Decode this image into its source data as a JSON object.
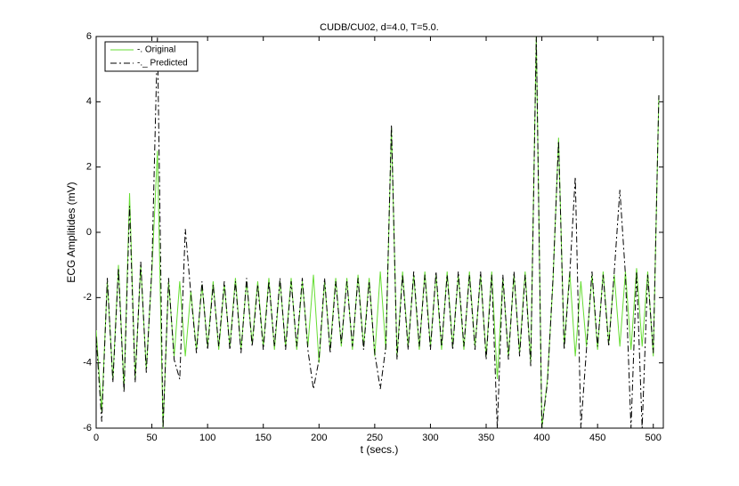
{
  "chart_data": {
    "type": "line",
    "title": "CUDB/CU02, d=4.0, T=5.0.",
    "x_label": "t (secs.)",
    "y_label": "ECG Amplitides (mV)",
    "x": [
      0,
      5,
      10,
      15,
      20,
      25,
      30,
      35,
      40,
      45,
      50,
      55,
      60,
      65,
      70,
      75,
      80,
      85,
      90,
      95,
      100,
      105,
      110,
      115,
      120,
      125,
      130,
      135,
      140,
      145,
      150,
      155,
      160,
      165,
      170,
      175,
      180,
      185,
      190,
      195,
      200,
      205,
      210,
      215,
      220,
      225,
      230,
      235,
      240,
      245,
      250,
      255,
      260,
      265,
      270,
      275,
      280,
      285,
      290,
      295,
      300,
      305,
      310,
      315,
      320,
      325,
      330,
      335,
      340,
      345,
      350,
      355,
      360,
      365,
      370,
      375,
      380,
      385,
      390,
      395,
      400,
      405,
      410,
      415,
      420,
      425,
      430,
      435,
      440,
      445,
      450,
      455,
      460,
      465,
      470,
      475,
      480,
      485,
      490,
      495,
      500,
      505
    ],
    "series": [
      {
        "name": "-. Original",
        "color": "#66dd33",
        "dash": "solid",
        "values": [
          -3,
          -5.5,
          -1.5,
          -4.5,
          -1,
          -4.8,
          1.2,
          -4.5,
          -1,
          -4.2,
          -1.2,
          2.5,
          -6,
          -1.5,
          -3.8,
          -1.5,
          -3.8,
          -1.8,
          -3.6,
          -1.6,
          -3.5,
          -1.5,
          -3.6,
          -1.6,
          -3.5,
          -1.4,
          -3.6,
          -1.5,
          -3.4,
          -1.5,
          -3.5,
          -1.4,
          -3.6,
          -1.5,
          -3.5,
          -1.4,
          -3.6,
          -1.5,
          -3.5,
          -1.3,
          -4,
          -1.5,
          -3.6,
          -1.4,
          -3.5,
          -1.4,
          -3.6,
          -1.3,
          -3.5,
          -1.4,
          -3.8,
          -1.2,
          -3.6,
          3.2,
          -3.8,
          -1.2,
          -3.5,
          -1.3,
          -3.6,
          -1.2,
          -3.5,
          -1.3,
          -3.6,
          -1.2,
          -3.5,
          -1.3,
          -3.6,
          -1.2,
          -3.5,
          -1.3,
          -3.8,
          -1.2,
          -4.5,
          -1.4,
          -3.8,
          -1.3,
          -3.7,
          -1.2,
          -4,
          6,
          -6,
          -4.5,
          -1.5,
          2.9,
          -3.5,
          -1.2,
          -3.8,
          -1.5,
          -3.5,
          -1.3,
          -3.6,
          -1.2,
          -3.4,
          -1.3,
          -3.5,
          -1.2,
          -3.6,
          -1.1,
          -3.5,
          -1.2,
          -3.8,
          4.2
        ]
      },
      {
        "name": "-._ Predicted",
        "color": "#000000",
        "dash": "dashdot",
        "values": [
          -3.2,
          -5.8,
          -1.4,
          -4.6,
          -1.1,
          -4.9,
          0.8,
          -4.6,
          -0.9,
          -4.3,
          -1.1,
          6,
          -6,
          -1.4,
          -3.9,
          -4.5,
          0.1,
          -1.9,
          -3.7,
          -1.5,
          -3.6,
          -1.6,
          -3.5,
          -1.5,
          -3.6,
          -1.5,
          -3.7,
          -1.4,
          -3.5,
          -1.6,
          -3.6,
          -1.5,
          -3.5,
          -1.4,
          -3.6,
          -1.5,
          -3.5,
          -1.4,
          -3.6,
          -4.8,
          -3.9,
          -1.4,
          -3.7,
          -1.5,
          -3.4,
          -1.5,
          -3.5,
          -1.4,
          -3.6,
          -1.5,
          -3.7,
          -4.8,
          -3.5,
          3.3,
          -3.9,
          -1.3,
          -3.6,
          -1.2,
          -3.5,
          -1.3,
          -3.6,
          -1.2,
          -3.5,
          -1.3,
          -3.6,
          -1.2,
          -3.5,
          -1.3,
          -3.6,
          -1.2,
          -3.9,
          -1.3,
          -6,
          -1.3,
          -3.9,
          -1.2,
          -3.8,
          -1.3,
          -4.1,
          6,
          -6,
          -4.6,
          -1.4,
          2.8,
          -3.6,
          -1.3,
          1.7,
          -6,
          -3.6,
          -1.2,
          -3.5,
          -1.3,
          -3.5,
          -1.2,
          1.3,
          -1.3,
          -6,
          -1.2,
          -6,
          -1.3,
          -3.7,
          4.2
        ]
      }
    ],
    "xlim": [
      0,
      509
    ],
    "ylim": [
      -6,
      6
    ],
    "xticks": [
      0,
      50,
      100,
      150,
      200,
      250,
      300,
      350,
      400,
      450,
      500
    ],
    "yticks": [
      -6,
      -4,
      -2,
      0,
      2,
      4,
      6
    ],
    "grid": false,
    "legend": "upper left"
  }
}
